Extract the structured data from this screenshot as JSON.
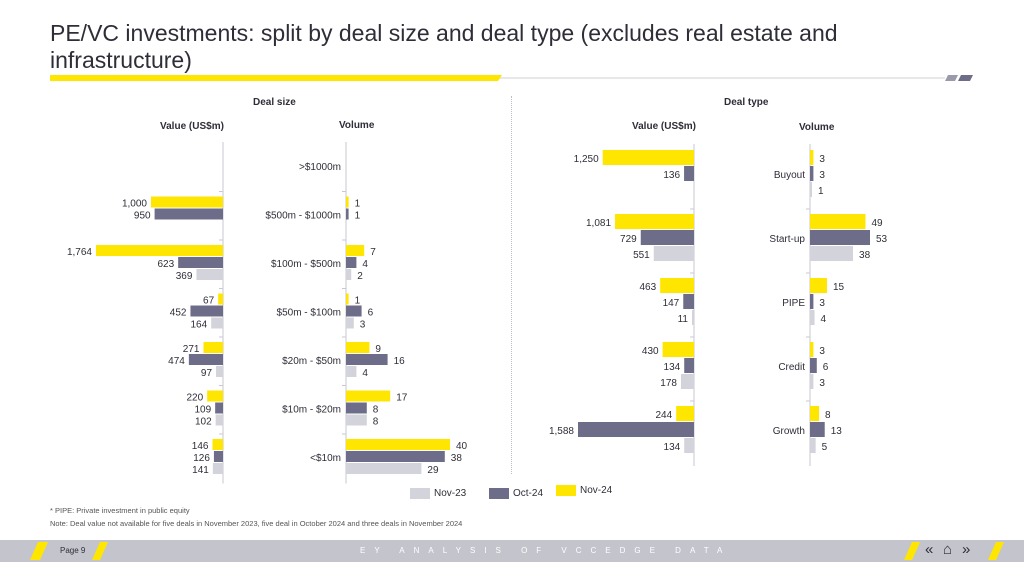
{
  "title": "PE/VC investments: split by deal size and deal type (excludes real estate and infrastructure)",
  "headers": {
    "deal_size": "Deal size",
    "deal_type": "Deal type",
    "value": "Value (US$m)",
    "volume": "Volume"
  },
  "colors": {
    "nov23": "#d3d3dc",
    "oct24": "#6d6d8a",
    "nov24": "#ffe600",
    "text": "#2e2e38"
  },
  "chart_data": [
    {
      "type": "bar",
      "orientation": "horizontal",
      "group": "Deal size",
      "measure": "Value (US$m)",
      "categories": [
        ">$1000m",
        "$500m - $1000m",
        "$100m - $500m",
        "$50m - $100m",
        "$20m - $50m",
        "$10m - $20m",
        "<$10m"
      ],
      "series": [
        {
          "name": "Nov-24",
          "values": [
            null,
            1000,
            1764,
            67,
            271,
            220,
            146
          ]
        },
        {
          "name": "Oct-24",
          "values": [
            null,
            950,
            623,
            452,
            474,
            109,
            126
          ]
        },
        {
          "name": "Nov-23",
          "values": [
            null,
            null,
            369,
            164,
            97,
            102,
            141
          ]
        }
      ]
    },
    {
      "type": "bar",
      "orientation": "horizontal",
      "group": "Deal size",
      "measure": "Volume",
      "categories": [
        ">$1000m",
        "$500m - $1000m",
        "$100m - $500m",
        "$50m - $100m",
        "$20m - $50m",
        "$10m - $20m",
        "<$10m"
      ],
      "series": [
        {
          "name": "Nov-24",
          "values": [
            null,
            1,
            7,
            1,
            9,
            17,
            40
          ]
        },
        {
          "name": "Oct-24",
          "values": [
            null,
            1,
            4,
            6,
            16,
            8,
            38
          ]
        },
        {
          "name": "Nov-23",
          "values": [
            null,
            null,
            2,
            3,
            4,
            8,
            29
          ]
        }
      ]
    },
    {
      "type": "bar",
      "orientation": "horizontal",
      "group": "Deal type",
      "measure": "Value (US$m)",
      "categories": [
        "Buyout",
        "Start-up",
        "PIPE",
        "Credit",
        "Growth"
      ],
      "series": [
        {
          "name": "Nov-24",
          "values": [
            1250,
            1081,
            463,
            430,
            244
          ]
        },
        {
          "name": "Oct-24",
          "values": [
            136,
            729,
            147,
            134,
            1588
          ]
        },
        {
          "name": "Nov-23",
          "values": [
            null,
            551,
            11,
            178,
            134
          ]
        }
      ]
    },
    {
      "type": "bar",
      "orientation": "horizontal",
      "group": "Deal type",
      "measure": "Volume",
      "categories": [
        "Buyout",
        "Start-up",
        "PIPE",
        "Credit",
        "Growth"
      ],
      "series": [
        {
          "name": "Nov-24",
          "values": [
            3,
            49,
            15,
            3,
            8
          ]
        },
        {
          "name": "Oct-24",
          "values": [
            3,
            53,
            3,
            6,
            13
          ]
        },
        {
          "name": "Nov-23",
          "values": [
            1,
            38,
            4,
            3,
            5
          ]
        }
      ]
    }
  ],
  "legend": [
    {
      "name": "Nov-23",
      "color": "#d3d3dc"
    },
    {
      "name": "Oct-24",
      "color": "#6d6d8a"
    },
    {
      "name": "Nov-24",
      "color": "#ffe600"
    }
  ],
  "footnotes": {
    "pipe": "* PIPE: Private investment in public equity",
    "note": "Note: Deal value not available for five deals in November 2023, five deal in October 2024 and three deals in November 2024"
  },
  "footer": {
    "page": "Page 9",
    "text": "EY ANALYSIS OF VCCEDGE DATA",
    "nav_prev": "«",
    "nav_home": "⌂",
    "nav_next": "»"
  }
}
